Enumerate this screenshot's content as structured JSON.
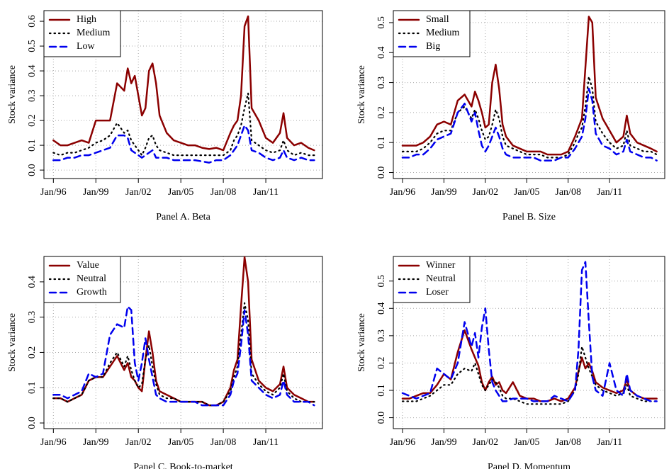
{
  "chart_data": [
    {
      "type": "line",
      "title": "Panel A. Beta",
      "ylabel": "Stock variance",
      "x": [
        "1996-01",
        "1996-07",
        "1997-01",
        "1997-07",
        "1998-01",
        "1998-07",
        "1999-01",
        "1999-07",
        "2000-01",
        "2000-07",
        "2001-01",
        "2001-04",
        "2001-07",
        "2001-10",
        "2002-01",
        "2002-04",
        "2002-07",
        "2002-10",
        "2003-01",
        "2003-04",
        "2003-07",
        "2004-01",
        "2004-07",
        "2005-01",
        "2005-07",
        "2006-01",
        "2006-07",
        "2007-01",
        "2007-07",
        "2008-01",
        "2008-07",
        "2008-10",
        "2009-01",
        "2009-04",
        "2009-07",
        "2009-10",
        "2010-01",
        "2010-07",
        "2011-01",
        "2011-07",
        "2012-01",
        "2012-04",
        "2012-07",
        "2013-01",
        "2013-07",
        "2014-01",
        "2014-06"
      ],
      "xlim": [
        "1995-05",
        "2015-01"
      ],
      "xticks": [
        {
          "value": "1996-01",
          "label": "Jan/96"
        },
        {
          "value": "1999-01",
          "label": "Jan/99"
        },
        {
          "value": "2002-01",
          "label": "Jan/02"
        },
        {
          "value": "2005-01",
          "label": "Jan/05"
        },
        {
          "value": "2008-01",
          "label": "Jan/08"
        },
        {
          "value": "2011-01",
          "label": "Jan/11"
        }
      ],
      "ylim": [
        -0.034,
        0.643
      ],
      "yticks": [
        {
          "value": 0,
          "label": "0.0"
        },
        0.1,
        0.2,
        0.3,
        0.4,
        0.5,
        0.6
      ],
      "grid": true,
      "legend": "top-left",
      "series": [
        {
          "name": "High",
          "color": "#8b0000",
          "style": "solid",
          "values": [
            0.12,
            0.1,
            0.1,
            0.11,
            0.12,
            0.11,
            0.2,
            0.2,
            0.2,
            0.35,
            0.32,
            0.41,
            0.35,
            0.38,
            0.3,
            0.22,
            0.25,
            0.4,
            0.43,
            0.35,
            0.22,
            0.15,
            0.12,
            0.11,
            0.1,
            0.1,
            0.09,
            0.085,
            0.09,
            0.08,
            0.15,
            0.18,
            0.2,
            0.3,
            0.58,
            0.62,
            0.25,
            0.2,
            0.13,
            0.11,
            0.15,
            0.23,
            0.13,
            0.1,
            0.11,
            0.09,
            0.08
          ]
        },
        {
          "name": "Medium",
          "color": "#000000",
          "style": "dotted",
          "values": [
            0.07,
            0.06,
            0.07,
            0.07,
            0.08,
            0.09,
            0.11,
            0.12,
            0.14,
            0.19,
            0.15,
            0.16,
            0.12,
            0.1,
            0.08,
            0.06,
            0.09,
            0.13,
            0.14,
            0.1,
            0.08,
            0.07,
            0.06,
            0.06,
            0.06,
            0.06,
            0.06,
            0.06,
            0.06,
            0.06,
            0.08,
            0.12,
            0.14,
            0.18,
            0.25,
            0.31,
            0.12,
            0.1,
            0.08,
            0.07,
            0.08,
            0.12,
            0.08,
            0.06,
            0.07,
            0.06,
            0.06
          ]
        },
        {
          "name": "Low",
          "color": "#0000ee",
          "style": "dashed",
          "values": [
            0.04,
            0.04,
            0.05,
            0.05,
            0.06,
            0.06,
            0.07,
            0.08,
            0.09,
            0.14,
            0.14,
            0.13,
            0.08,
            0.07,
            0.06,
            0.05,
            0.06,
            0.07,
            0.08,
            0.05,
            0.05,
            0.05,
            0.04,
            0.04,
            0.04,
            0.04,
            0.035,
            0.03,
            0.04,
            0.04,
            0.06,
            0.08,
            0.1,
            0.14,
            0.18,
            0.16,
            0.08,
            0.07,
            0.05,
            0.04,
            0.05,
            0.08,
            0.05,
            0.04,
            0.05,
            0.04,
            0.04
          ]
        }
      ]
    },
    {
      "type": "line",
      "title": "Panel B. Size",
      "ylabel": "Stock variance",
      "x": [
        "1996-01",
        "1996-07",
        "1997-01",
        "1997-07",
        "1998-01",
        "1998-07",
        "1999-01",
        "1999-07",
        "2000-01",
        "2000-07",
        "2001-01",
        "2001-04",
        "2001-07",
        "2001-10",
        "2002-01",
        "2002-04",
        "2002-07",
        "2002-10",
        "2003-01",
        "2003-04",
        "2003-07",
        "2004-01",
        "2004-07",
        "2005-01",
        "2005-07",
        "2006-01",
        "2006-07",
        "2007-01",
        "2007-07",
        "2008-01",
        "2008-07",
        "2008-10",
        "2009-01",
        "2009-04",
        "2009-07",
        "2009-10",
        "2010-01",
        "2010-07",
        "2011-01",
        "2011-07",
        "2012-01",
        "2012-04",
        "2012-07",
        "2013-01",
        "2013-07",
        "2014-01",
        "2014-06"
      ],
      "xlim": [
        "1995-05",
        "2015-01"
      ],
      "xticks": [
        {
          "value": "1996-01",
          "label": "Jan/96"
        },
        {
          "value": "1999-01",
          "label": "Jan/99"
        },
        {
          "value": "2002-01",
          "label": "Jan/02"
        },
        {
          "value": "2005-01",
          "label": "Jan/05"
        },
        {
          "value": "2008-01",
          "label": "Jan/08"
        },
        {
          "value": "2011-01",
          "label": "Jan/11"
        }
      ],
      "ylim": [
        -0.02,
        0.54
      ],
      "yticks": [
        {
          "value": 0,
          "label": "0.0"
        },
        0.1,
        0.2,
        0.3,
        0.4,
        0.5
      ],
      "grid": true,
      "legend": "top-left",
      "series": [
        {
          "name": "Small",
          "color": "#8b0000",
          "style": "solid",
          "values": [
            0.09,
            0.09,
            0.09,
            0.1,
            0.12,
            0.16,
            0.17,
            0.16,
            0.24,
            0.26,
            0.22,
            0.27,
            0.24,
            0.2,
            0.15,
            0.16,
            0.3,
            0.36,
            0.28,
            0.16,
            0.12,
            0.09,
            0.08,
            0.07,
            0.07,
            0.07,
            0.06,
            0.06,
            0.06,
            0.07,
            0.12,
            0.15,
            0.18,
            0.35,
            0.52,
            0.5,
            0.25,
            0.18,
            0.14,
            0.1,
            0.12,
            0.19,
            0.13,
            0.1,
            0.09,
            0.08,
            0.07
          ]
        },
        {
          "name": "Medium",
          "color": "#000000",
          "style": "dotted",
          "values": [
            0.07,
            0.07,
            0.07,
            0.08,
            0.1,
            0.13,
            0.14,
            0.14,
            0.2,
            0.22,
            0.18,
            0.21,
            0.18,
            0.14,
            0.11,
            0.12,
            0.16,
            0.21,
            0.18,
            0.12,
            0.09,
            0.08,
            0.07,
            0.06,
            0.06,
            0.06,
            0.05,
            0.05,
            0.05,
            0.06,
            0.1,
            0.13,
            0.15,
            0.22,
            0.32,
            0.28,
            0.17,
            0.13,
            0.1,
            0.08,
            0.09,
            0.14,
            0.09,
            0.08,
            0.07,
            0.07,
            0.06
          ]
        },
        {
          "name": "Big",
          "color": "#0000ee",
          "style": "dashed",
          "values": [
            0.05,
            0.05,
            0.06,
            0.06,
            0.08,
            0.11,
            0.12,
            0.13,
            0.2,
            0.23,
            0.17,
            0.2,
            0.14,
            0.09,
            0.07,
            0.09,
            0.12,
            0.15,
            0.12,
            0.08,
            0.06,
            0.05,
            0.05,
            0.05,
            0.05,
            0.04,
            0.04,
            0.04,
            0.05,
            0.05,
            0.08,
            0.1,
            0.12,
            0.18,
            0.28,
            0.24,
            0.13,
            0.09,
            0.08,
            0.06,
            0.07,
            0.11,
            0.07,
            0.06,
            0.05,
            0.05,
            0.04
          ]
        }
      ]
    },
    {
      "type": "line",
      "title": "Panel C. Book-to-market",
      "ylabel": "Stock variance",
      "x": [
        "1996-01",
        "1996-07",
        "1997-01",
        "1997-07",
        "1998-01",
        "1998-07",
        "1999-01",
        "1999-07",
        "2000-01",
        "2000-07",
        "2001-01",
        "2001-04",
        "2001-07",
        "2001-10",
        "2002-01",
        "2002-04",
        "2002-07",
        "2002-10",
        "2003-01",
        "2003-04",
        "2003-07",
        "2004-01",
        "2004-07",
        "2005-01",
        "2005-07",
        "2006-01",
        "2006-07",
        "2007-01",
        "2007-07",
        "2008-01",
        "2008-07",
        "2008-10",
        "2009-01",
        "2009-04",
        "2009-07",
        "2009-10",
        "2010-01",
        "2010-07",
        "2011-01",
        "2011-07",
        "2012-01",
        "2012-04",
        "2012-07",
        "2013-01",
        "2013-07",
        "2014-01",
        "2014-06"
      ],
      "xlim": [
        "1995-05",
        "2015-01"
      ],
      "xticks": [
        {
          "value": "1996-01",
          "label": "Jan/96"
        },
        {
          "value": "1999-01",
          "label": "Jan/99"
        },
        {
          "value": "2002-01",
          "label": "Jan/02"
        },
        {
          "value": "2005-01",
          "label": "Jan/05"
        },
        {
          "value": "2008-01",
          "label": "Jan/08"
        },
        {
          "value": "2011-01",
          "label": "Jan/11"
        }
      ],
      "ylim": [
        -0.016,
        0.472
      ],
      "yticks": [
        {
          "value": 0,
          "label": "0.0"
        },
        0.1,
        0.2,
        0.3,
        0.4
      ],
      "grid": true,
      "legend": "top-left",
      "series": [
        {
          "name": "Value",
          "color": "#8b0000",
          "style": "solid",
          "values": [
            0.07,
            0.07,
            0.06,
            0.07,
            0.08,
            0.12,
            0.13,
            0.13,
            0.16,
            0.19,
            0.15,
            0.17,
            0.13,
            0.12,
            0.1,
            0.09,
            0.18,
            0.26,
            0.2,
            0.12,
            0.09,
            0.08,
            0.07,
            0.06,
            0.06,
            0.06,
            0.06,
            0.05,
            0.05,
            0.06,
            0.1,
            0.15,
            0.18,
            0.33,
            0.47,
            0.4,
            0.18,
            0.12,
            0.1,
            0.09,
            0.11,
            0.16,
            0.1,
            0.08,
            0.07,
            0.06,
            0.06
          ]
        },
        {
          "name": "Neutral",
          "color": "#000000",
          "style": "dotted",
          "values": [
            0.07,
            0.07,
            0.06,
            0.07,
            0.08,
            0.12,
            0.13,
            0.13,
            0.17,
            0.2,
            0.16,
            0.19,
            0.15,
            0.12,
            0.1,
            0.11,
            0.18,
            0.22,
            0.16,
            0.11,
            0.08,
            0.07,
            0.07,
            0.06,
            0.06,
            0.06,
            0.06,
            0.05,
            0.05,
            0.06,
            0.09,
            0.13,
            0.16,
            0.25,
            0.34,
            0.29,
            0.14,
            0.11,
            0.09,
            0.08,
            0.1,
            0.14,
            0.09,
            0.07,
            0.06,
            0.06,
            0.06
          ]
        },
        {
          "name": "Growth",
          "color": "#0000ee",
          "style": "dashed",
          "values": [
            0.08,
            0.08,
            0.07,
            0.08,
            0.09,
            0.14,
            0.13,
            0.14,
            0.25,
            0.28,
            0.27,
            0.33,
            0.32,
            0.17,
            0.12,
            0.17,
            0.24,
            0.18,
            0.13,
            0.08,
            0.07,
            0.06,
            0.06,
            0.06,
            0.06,
            0.06,
            0.05,
            0.05,
            0.05,
            0.05,
            0.08,
            0.12,
            0.14,
            0.22,
            0.32,
            0.25,
            0.12,
            0.1,
            0.08,
            0.07,
            0.08,
            0.12,
            0.08,
            0.06,
            0.06,
            0.06,
            0.05
          ]
        }
      ]
    },
    {
      "type": "line",
      "title": "Panel D. Momentum",
      "ylabel": "Stock variance",
      "x": [
        "1996-01",
        "1996-07",
        "1997-01",
        "1997-07",
        "1998-01",
        "1998-07",
        "1999-01",
        "1999-07",
        "2000-01",
        "2000-07",
        "2001-01",
        "2001-04",
        "2001-07",
        "2001-10",
        "2002-01",
        "2002-04",
        "2002-07",
        "2002-10",
        "2003-01",
        "2003-04",
        "2003-07",
        "2004-01",
        "2004-07",
        "2005-01",
        "2005-07",
        "2006-01",
        "2006-07",
        "2007-01",
        "2007-07",
        "2008-01",
        "2008-07",
        "2008-10",
        "2009-01",
        "2009-04",
        "2009-07",
        "2009-10",
        "2010-01",
        "2010-07",
        "2011-01",
        "2011-07",
        "2012-01",
        "2012-04",
        "2012-07",
        "2013-01",
        "2013-07",
        "2014-01",
        "2014-06"
      ],
      "xlim": [
        "1995-05",
        "2015-01"
      ],
      "xticks": [
        {
          "value": "1996-01",
          "label": "Jan/96"
        },
        {
          "value": "1999-01",
          "label": "Jan/99"
        },
        {
          "value": "2002-01",
          "label": "Jan/02"
        },
        {
          "value": "2005-01",
          "label": "Jan/05"
        },
        {
          "value": "2008-01",
          "label": "Jan/08"
        },
        {
          "value": "2011-01",
          "label": "Jan/11"
        }
      ],
      "ylim": [
        -0.04,
        0.59
      ],
      "yticks": [
        {
          "value": 0,
          "label": "0.0"
        },
        0.1,
        0.2,
        0.3,
        0.4,
        0.5
      ],
      "grid": true,
      "legend": "top-left",
      "series": [
        {
          "name": "Winner",
          "color": "#8b0000",
          "style": "solid",
          "values": [
            0.07,
            0.07,
            0.08,
            0.09,
            0.09,
            0.12,
            0.16,
            0.14,
            0.24,
            0.32,
            0.25,
            0.22,
            0.19,
            0.13,
            0.1,
            0.13,
            0.15,
            0.12,
            0.13,
            0.1,
            0.09,
            0.13,
            0.08,
            0.07,
            0.07,
            0.06,
            0.06,
            0.07,
            0.06,
            0.07,
            0.11,
            0.17,
            0.22,
            0.18,
            0.2,
            0.17,
            0.13,
            0.11,
            0.1,
            0.09,
            0.1,
            0.14,
            0.1,
            0.08,
            0.07,
            0.07,
            0.07
          ]
        },
        {
          "name": "Neutral",
          "color": "#000000",
          "style": "dotted",
          "values": [
            0.06,
            0.06,
            0.06,
            0.07,
            0.08,
            0.1,
            0.12,
            0.12,
            0.16,
            0.18,
            0.17,
            0.2,
            0.16,
            0.12,
            0.1,
            0.12,
            0.14,
            0.13,
            0.11,
            0.08,
            0.07,
            0.07,
            0.06,
            0.05,
            0.05,
            0.05,
            0.05,
            0.05,
            0.05,
            0.06,
            0.1,
            0.16,
            0.26,
            0.22,
            0.18,
            0.15,
            0.12,
            0.1,
            0.09,
            0.08,
            0.09,
            0.12,
            0.08,
            0.07,
            0.06,
            0.06,
            0.06
          ]
        },
        {
          "name": "Loser",
          "color": "#0000ee",
          "style": "dashed",
          "values": [
            0.09,
            0.08,
            0.07,
            0.08,
            0.09,
            0.18,
            0.16,
            0.14,
            0.2,
            0.35,
            0.26,
            0.31,
            0.22,
            0.33,
            0.4,
            0.25,
            0.13,
            0.1,
            0.08,
            0.06,
            0.06,
            0.07,
            0.07,
            0.07,
            0.06,
            0.06,
            0.06,
            0.08,
            0.07,
            0.06,
            0.1,
            0.25,
            0.54,
            0.57,
            0.35,
            0.15,
            0.1,
            0.08,
            0.2,
            0.1,
            0.08,
            0.16,
            0.1,
            0.08,
            0.07,
            0.06,
            0.06
          ]
        }
      ]
    }
  ]
}
